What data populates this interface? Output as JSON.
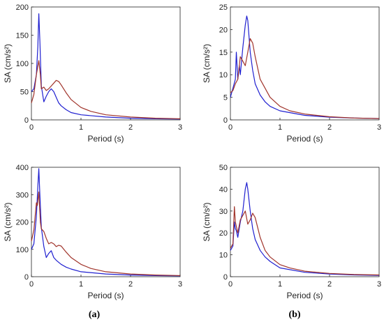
{
  "panel_labels": [
    "(a)",
    "(b)"
  ],
  "colors": {
    "series_a": "#1f1fd0",
    "series_b": "#a0332a",
    "axis": "#222222"
  },
  "chart_data": [
    {
      "type": "line",
      "xlabel": "Period (s)",
      "ylabel": "SA (cm/s²)",
      "xlim": [
        0,
        3
      ],
      "ylim": [
        0,
        200
      ],
      "xticks": [
        0,
        1,
        2,
        3
      ],
      "yticks": [
        0,
        50,
        100,
        150,
        200
      ],
      "grid": false,
      "series": [
        {
          "color": "#1f1fd0",
          "x": [
            0,
            0.05,
            0.1,
            0.13,
            0.15,
            0.17,
            0.2,
            0.25,
            0.3,
            0.35,
            0.4,
            0.45,
            0.5,
            0.55,
            0.6,
            0.7,
            0.8,
            1.0,
            1.5,
            2.0,
            2.5,
            3.0
          ],
          "y": [
            50,
            55,
            80,
            130,
            188,
            140,
            60,
            32,
            42,
            50,
            55,
            50,
            40,
            30,
            25,
            18,
            13,
            9,
            5,
            3,
            2,
            1.5
          ]
        },
        {
          "color": "#a0332a",
          "x": [
            0,
            0.05,
            0.1,
            0.15,
            0.18,
            0.2,
            0.25,
            0.3,
            0.35,
            0.4,
            0.45,
            0.5,
            0.55,
            0.6,
            0.7,
            0.8,
            1.0,
            1.2,
            1.5,
            2.0,
            2.5,
            3.0
          ],
          "y": [
            30,
            45,
            80,
            105,
            80,
            55,
            58,
            52,
            55,
            60,
            65,
            70,
            68,
            62,
            48,
            36,
            22,
            15,
            9,
            5,
            3,
            2
          ]
        }
      ]
    },
    {
      "type": "line",
      "xlabel": "Period (s)",
      "ylabel": "SA (cm/s²)",
      "xlim": [
        0,
        3
      ],
      "ylim": [
        0,
        25
      ],
      "xticks": [
        0,
        1,
        2,
        3
      ],
      "yticks": [
        0,
        5,
        10,
        15,
        20,
        25
      ],
      "grid": false,
      "series": [
        {
          "color": "#1f1fd0",
          "x": [
            0,
            0.05,
            0.1,
            0.12,
            0.15,
            0.18,
            0.2,
            0.25,
            0.3,
            0.33,
            0.35,
            0.4,
            0.45,
            0.5,
            0.6,
            0.7,
            0.8,
            1.0,
            1.5,
            2.0,
            2.5,
            3.0
          ],
          "y": [
            5,
            7,
            9,
            15,
            9,
            12,
            10,
            16,
            21,
            23,
            22,
            15,
            11,
            8,
            5.5,
            4,
            3,
            2,
            1,
            0.6,
            0.4,
            0.3
          ]
        },
        {
          "color": "#a0332a",
          "x": [
            0,
            0.05,
            0.1,
            0.15,
            0.2,
            0.25,
            0.3,
            0.35,
            0.4,
            0.45,
            0.5,
            0.6,
            0.7,
            0.8,
            1.0,
            1.2,
            1.5,
            2.0,
            2.5,
            3.0
          ],
          "y": [
            6,
            6.5,
            8,
            9,
            14,
            13,
            12,
            15,
            18,
            17,
            14,
            9,
            7,
            5,
            3,
            2,
            1.3,
            0.7,
            0.4,
            0.3
          ]
        }
      ]
    },
    {
      "type": "line",
      "xlabel": "Period (s)",
      "ylabel": "SA (cm/s²)",
      "xlim": [
        0,
        3
      ],
      "ylim": [
        0,
        400
      ],
      "xticks": [
        0,
        1,
        2,
        3
      ],
      "yticks": [
        0,
        100,
        200,
        300,
        400
      ],
      "grid": false,
      "series": [
        {
          "color": "#1f1fd0",
          "x": [
            0,
            0.05,
            0.1,
            0.13,
            0.15,
            0.17,
            0.2,
            0.25,
            0.3,
            0.35,
            0.4,
            0.45,
            0.5,
            0.6,
            0.7,
            0.8,
            1.0,
            1.5,
            2.0,
            2.5,
            3.0
          ],
          "y": [
            100,
            120,
            220,
            330,
            395,
            300,
            180,
            110,
            70,
            85,
            95,
            70,
            60,
            45,
            35,
            28,
            18,
            10,
            6,
            4,
            3
          ]
        },
        {
          "color": "#a0332a",
          "x": [
            0,
            0.05,
            0.1,
            0.12,
            0.15,
            0.18,
            0.2,
            0.25,
            0.3,
            0.35,
            0.4,
            0.45,
            0.5,
            0.55,
            0.6,
            0.7,
            0.8,
            1.0,
            1.2,
            1.5,
            2.0,
            2.5,
            3.0
          ],
          "y": [
            130,
            170,
            270,
            260,
            310,
            200,
            175,
            165,
            140,
            120,
            125,
            120,
            110,
            115,
            112,
            90,
            70,
            45,
            30,
            18,
            10,
            6,
            4
          ]
        }
      ]
    },
    {
      "type": "line",
      "xlabel": "Period (s)",
      "ylabel": "SA (cm/s²)",
      "xlim": [
        0,
        3
      ],
      "ylim": [
        0,
        50
      ],
      "xticks": [
        0,
        1,
        2,
        3
      ],
      "yticks": [
        0,
        10,
        20,
        30,
        40,
        50
      ],
      "grid": false,
      "series": [
        {
          "color": "#1f1fd0",
          "x": [
            0,
            0.05,
            0.08,
            0.1,
            0.12,
            0.15,
            0.2,
            0.25,
            0.3,
            0.33,
            0.35,
            0.4,
            0.45,
            0.5,
            0.6,
            0.7,
            0.8,
            1.0,
            1.5,
            2.0,
            2.5,
            3.0
          ],
          "y": [
            12,
            14,
            25,
            22,
            21,
            18,
            25,
            30,
            40,
            43,
            40,
            30,
            22,
            17,
            12,
            9,
            7,
            4,
            2,
            1.2,
            0.8,
            0.6
          ]
        },
        {
          "color": "#a0332a",
          "x": [
            0,
            0.05,
            0.08,
            0.1,
            0.15,
            0.2,
            0.25,
            0.3,
            0.35,
            0.4,
            0.45,
            0.5,
            0.6,
            0.7,
            0.8,
            1.0,
            1.2,
            1.5,
            2.0,
            2.5,
            3.0
          ],
          "y": [
            13,
            15,
            32,
            25,
            20,
            26,
            28,
            30,
            24,
            26,
            29,
            27,
            18,
            12,
            9,
            5.5,
            4,
            2.5,
            1.5,
            1,
            0.8
          ]
        }
      ]
    }
  ]
}
